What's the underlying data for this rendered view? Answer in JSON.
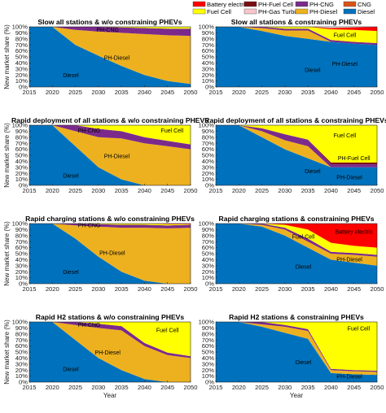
{
  "legend": [
    {
      "key": "battery",
      "label": "Battery electric",
      "color": "#ff0000"
    },
    {
      "key": "phfc",
      "label": "PH-Fuel Cell",
      "color": "#7a0d14"
    },
    {
      "key": "phcng",
      "label": "PH-CNG",
      "color": "#7b2a8c"
    },
    {
      "key": "cng",
      "label": "CNG",
      "color": "#d95319"
    },
    {
      "key": "fuelcell",
      "label": "Fuel Cell",
      "color": "#ffff00"
    },
    {
      "key": "phgt",
      "label": "PH-Gas Turbine",
      "color": "#f7c6cc"
    },
    {
      "key": "phdiesel",
      "label": "PH-Diesel",
      "color": "#edb120"
    },
    {
      "key": "diesel",
      "label": "Diesel",
      "color": "#0072bd"
    }
  ],
  "stack_order": [
    "diesel",
    "phdiesel",
    "phcng",
    "cng",
    "phgt",
    "phfc",
    "fuelcell",
    "battery"
  ],
  "axes": {
    "x_ticks": [
      "2015",
      "2020",
      "2025",
      "2030",
      "2035",
      "2040",
      "2045",
      "2050"
    ],
    "y_ticks": [
      "0%",
      "10%",
      "20%",
      "30%",
      "40%",
      "50%",
      "60%",
      "70%",
      "80%",
      "90%",
      "100%"
    ],
    "ylabel": "New market share (%)",
    "xlabel": "Year"
  },
  "chart_data": [
    {
      "type": "area",
      "title": "Slow all stations & w/o constraining PHEVs",
      "x": [
        2015,
        2020,
        2025,
        2030,
        2035,
        2040,
        2045,
        2050
      ],
      "xlim": [
        2015,
        2050
      ],
      "ylim": [
        0,
        100
      ],
      "series": [
        {
          "name": "Diesel",
          "values": [
            100,
            100,
            70,
            52,
            35,
            20,
            10,
            5
          ]
        },
        {
          "name": "PH-Diesel",
          "values": [
            0,
            0,
            25,
            40,
            55,
            68,
            76,
            80
          ]
        },
        {
          "name": "PH-CNG",
          "values": [
            0,
            0,
            5,
            8,
            9,
            10,
            11,
            12
          ]
        },
        {
          "name": "Fuel Cell",
          "values": [
            0,
            0,
            0,
            0,
            1,
            2,
            3,
            3
          ]
        }
      ],
      "annotations": [
        {
          "text": "PH-CNG",
          "x": 2032,
          "y": 92
        },
        {
          "text": "PH-Diesel",
          "x": 2034,
          "y": 45
        },
        {
          "text": "Diesel",
          "x": 2024,
          "y": 16
        }
      ]
    },
    {
      "type": "area",
      "title": "Slow all stations & constraining PHEVs",
      "x": [
        2015,
        2020,
        2025,
        2030,
        2035,
        2040,
        2045,
        2050
      ],
      "xlim": [
        2015,
        2050
      ],
      "ylim": [
        0,
        100
      ],
      "series": [
        {
          "name": "Diesel",
          "values": [
            100,
            100,
            93,
            85,
            80,
            75,
            72,
            70
          ]
        },
        {
          "name": "PH-Diesel",
          "values": [
            0,
            0,
            5,
            9,
            14,
            0,
            0,
            0
          ]
        },
        {
          "name": "PH-CNG",
          "values": [
            0,
            0,
            2,
            3,
            3,
            3,
            3,
            3
          ]
        },
        {
          "name": "Fuel Cell",
          "values": [
            0,
            0,
            0,
            3,
            3,
            18,
            20,
            20
          ]
        },
        {
          "name": "Battery electric",
          "values": [
            0,
            0,
            0,
            0,
            0,
            2,
            4,
            7
          ]
        }
      ],
      "annotations": [
        {
          "text": "Fuel Cell",
          "x": 2043,
          "y": 83
        },
        {
          "text": "PH-Diesel",
          "x": 2043,
          "y": 35
        },
        {
          "text": "Diesel",
          "x": 2036,
          "y": 25
        }
      ]
    },
    {
      "type": "area",
      "title": "Rapid deployment of all stations & w/o constraining PHEVs",
      "x": [
        2015,
        2020,
        2025,
        2030,
        2035,
        2040,
        2045,
        2050
      ],
      "xlim": [
        2015,
        2050
      ],
      "ylim": [
        0,
        100
      ],
      "series": [
        {
          "name": "Diesel",
          "values": [
            100,
            100,
            65,
            30,
            10,
            0,
            0,
            0
          ]
        },
        {
          "name": "PH-Diesel",
          "values": [
            0,
            0,
            25,
            50,
            68,
            70,
            65,
            60
          ]
        },
        {
          "name": "PH-CNG",
          "values": [
            0,
            0,
            10,
            14,
            12,
            10,
            9,
            8
          ]
        },
        {
          "name": "Fuel Cell",
          "values": [
            0,
            0,
            0,
            6,
            10,
            20,
            26,
            32
          ]
        }
      ],
      "annotations": [
        {
          "text": "PH-CNG",
          "x": 2028,
          "y": 88
        },
        {
          "text": "Fuel Cell",
          "x": 2046,
          "y": 88
        },
        {
          "text": "PH-Diesel",
          "x": 2034,
          "y": 45
        },
        {
          "text": "Diesel",
          "x": 2024,
          "y": 13
        }
      ]
    },
    {
      "type": "area",
      "title": "Rapid deployment of all stations & constraining PHEVs",
      "x": [
        2015,
        2020,
        2025,
        2030,
        2035,
        2040,
        2045,
        2050
      ],
      "xlim": [
        2015,
        2050
      ],
      "ylim": [
        0,
        100
      ],
      "series": [
        {
          "name": "Diesel",
          "values": [
            100,
            100,
            80,
            60,
            45,
            30,
            30,
            30
          ]
        },
        {
          "name": "PH-Diesel",
          "values": [
            0,
            0,
            10,
            15,
            20,
            0,
            0,
            0
          ]
        },
        {
          "name": "PH-CNG",
          "values": [
            0,
            0,
            5,
            10,
            11,
            5,
            5,
            5
          ]
        },
        {
          "name": "PH-Fuel Cell",
          "values": [
            0,
            0,
            0,
            0,
            0,
            3,
            3,
            3
          ]
        },
        {
          "name": "Fuel Cell",
          "values": [
            0,
            0,
            5,
            15,
            24,
            62,
            62,
            62
          ]
        }
      ],
      "annotations": [
        {
          "text": "Fuel Cell",
          "x": 2043,
          "y": 80
        },
        {
          "text": "PH-Fuel Cell",
          "x": 2045,
          "y": 42
        },
        {
          "text": "PH-Diesel",
          "x": 2044,
          "y": 10
        },
        {
          "text": "Diesel",
          "x": 2036,
          "y": 20
        }
      ]
    },
    {
      "type": "area",
      "title": "Rapid charging stations & w/o constraining PHEVs",
      "x": [
        2015,
        2020,
        2025,
        2030,
        2035,
        2040,
        2045,
        2050
      ],
      "xlim": [
        2015,
        2050
      ],
      "ylim": [
        0,
        100
      ],
      "series": [
        {
          "name": "Diesel",
          "values": [
            100,
            100,
            75,
            45,
            20,
            5,
            0,
            0
          ]
        },
        {
          "name": "PH-Diesel",
          "values": [
            0,
            0,
            22,
            50,
            73,
            88,
            92,
            93
          ]
        },
        {
          "name": "PH-CNG",
          "values": [
            0,
            0,
            3,
            4,
            5,
            5,
            5,
            5
          ]
        },
        {
          "name": "Fuel Cell",
          "values": [
            0,
            0,
            0,
            1,
            2,
            2,
            2,
            1
          ]
        },
        {
          "name": "Battery electric",
          "values": [
            0,
            0,
            0,
            0,
            0,
            0,
            1,
            1
          ]
        }
      ],
      "annotations": [
        {
          "text": "PH-CNG",
          "x": 2028,
          "y": 94
        },
        {
          "text": "PH-Diesel",
          "x": 2033,
          "y": 48
        },
        {
          "text": "Diesel",
          "x": 2024,
          "y": 16
        }
      ]
    },
    {
      "type": "area",
      "title": "Rapid charging stations & constraining PHEVs",
      "x": [
        2015,
        2020,
        2025,
        2030,
        2035,
        2040,
        2045,
        2050
      ],
      "xlim": [
        2015,
        2050
      ],
      "ylim": [
        0,
        100
      ],
      "series": [
        {
          "name": "Diesel",
          "values": [
            100,
            100,
            95,
            80,
            60,
            40,
            35,
            30
          ]
        },
        {
          "name": "PH-Diesel",
          "values": [
            0,
            0,
            3,
            10,
            10,
            10,
            13,
            15
          ]
        },
        {
          "name": "PH-CNG",
          "values": [
            0,
            0,
            2,
            3,
            5,
            3,
            3,
            3
          ]
        },
        {
          "name": "Fuel Cell",
          "values": [
            0,
            0,
            0,
            5,
            15,
            15,
            12,
            12
          ]
        },
        {
          "name": "Battery electric",
          "values": [
            0,
            0,
            0,
            2,
            10,
            32,
            37,
            40
          ]
        }
      ],
      "annotations": [
        {
          "text": "Fuel Cell",
          "x": 2034,
          "y": 75
        },
        {
          "text": "Battery electric",
          "x": 2045,
          "y": 83
        },
        {
          "text": "PH-Diesel",
          "x": 2044,
          "y": 37
        },
        {
          "text": "Diesel",
          "x": 2034,
          "y": 25
        }
      ]
    },
    {
      "type": "area",
      "title": "Rapid H2 stations & w/o constraining PHEVs",
      "x": [
        2015,
        2020,
        2025,
        2030,
        2035,
        2040,
        2045,
        2050
      ],
      "xlim": [
        2015,
        2050
      ],
      "ylim": [
        0,
        100
      ],
      "series": [
        {
          "name": "Diesel",
          "values": [
            100,
            100,
            70,
            40,
            20,
            5,
            0,
            0
          ]
        },
        {
          "name": "PH-Diesel",
          "values": [
            0,
            0,
            25,
            50,
            66,
            55,
            45,
            40
          ]
        },
        {
          "name": "PH-CNG",
          "values": [
            0,
            0,
            5,
            7,
            7,
            5,
            4,
            3
          ]
        },
        {
          "name": "Fuel Cell",
          "values": [
            0,
            0,
            0,
            3,
            7,
            35,
            51,
            57
          ]
        }
      ],
      "annotations": [
        {
          "text": "PH-CNG",
          "x": 2028,
          "y": 92
        },
        {
          "text": "Fuel Cell",
          "x": 2045,
          "y": 83
        },
        {
          "text": "PH-Diesel",
          "x": 2032,
          "y": 46
        },
        {
          "text": "Diesel",
          "x": 2024,
          "y": 18
        }
      ]
    },
    {
      "type": "area",
      "title": "Rapid H2 stations & constraining PHEVs",
      "x": [
        2015,
        2020,
        2025,
        2030,
        2035,
        2040,
        2045,
        2050
      ],
      "xlim": [
        2015,
        2050
      ],
      "ylim": [
        0,
        100
      ],
      "series": [
        {
          "name": "Diesel",
          "values": [
            100,
            100,
            92,
            82,
            72,
            15,
            13,
            12
          ]
        },
        {
          "name": "PH-Diesel",
          "values": [
            0,
            0,
            4,
            10,
            13,
            5,
            5,
            5
          ]
        },
        {
          "name": "PH-CNG",
          "values": [
            0,
            0,
            4,
            3,
            3,
            2,
            2,
            2
          ]
        },
        {
          "name": "Fuel Cell",
          "values": [
            0,
            0,
            0,
            5,
            12,
            78,
            80,
            81
          ]
        }
      ],
      "annotations": [
        {
          "text": "Fuel Cell",
          "x": 2046,
          "y": 86
        },
        {
          "text": "PH-Diesel",
          "x": 2044,
          "y": 6
        },
        {
          "text": "Diesel",
          "x": 2034,
          "y": 30
        }
      ]
    }
  ]
}
